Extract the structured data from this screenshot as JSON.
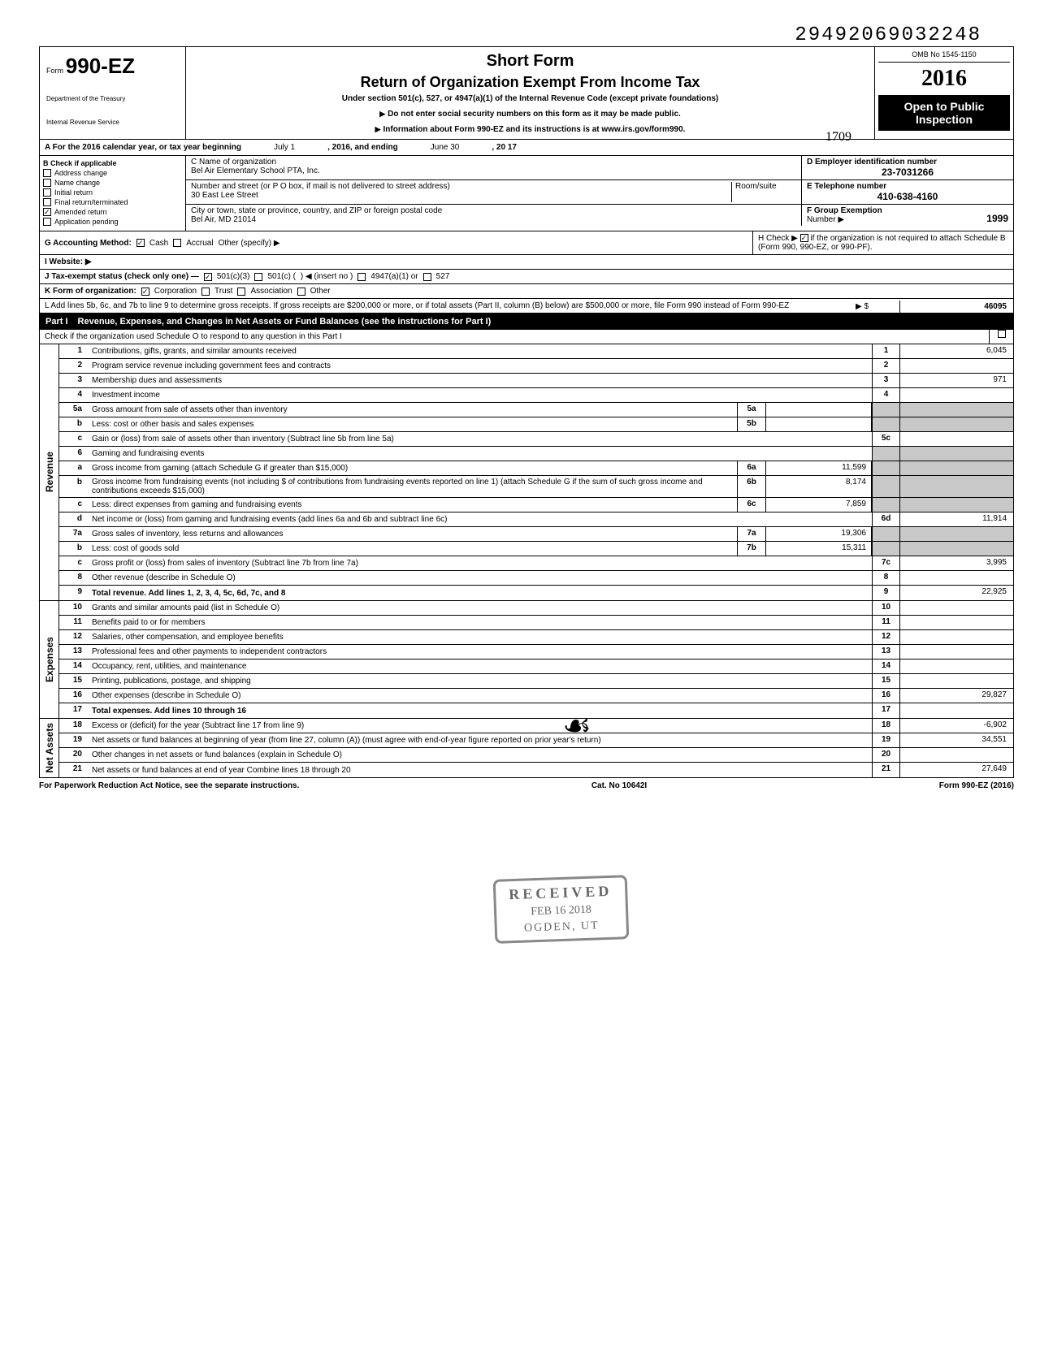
{
  "top_number": "29492069032248",
  "form": {
    "label": "Form",
    "number": "990-EZ",
    "dept1": "Department of the Treasury",
    "dept2": "Internal Revenue Service"
  },
  "header": {
    "short_form": "Short Form",
    "title": "Return of Organization Exempt From Income Tax",
    "under": "Under section 501(c), 527, or 4947(a)(1) of the Internal Revenue Code (except private foundations)",
    "warn": "Do not enter social security numbers on this form as it may be made public.",
    "info": "Information about Form 990-EZ and its instructions is at www.irs.gov/form990.",
    "omb": "OMB No 1545-1150",
    "year": "2016",
    "open": "Open to Public Inspection",
    "hand_note": "1709"
  },
  "a_line": {
    "prefix": "A For the 2016 calendar year, or tax year beginning",
    "begin": "July 1",
    "mid": ", 2016, and ending",
    "end": "June 30",
    "suffix": ", 20  17"
  },
  "section_b": {
    "label": "B Check if applicable",
    "checks": [
      {
        "label": "Address change",
        "checked": false
      },
      {
        "label": "Name change",
        "checked": false
      },
      {
        "label": "Initial return",
        "checked": false
      },
      {
        "label": "Final return/terminated",
        "checked": false
      },
      {
        "label": "Amended return",
        "checked": true
      },
      {
        "label": "Application pending",
        "checked": false
      }
    ]
  },
  "section_c": {
    "name_label": "C Name of organization",
    "name": "Bel Air Elementary School PTA, Inc.",
    "street_label": "Number and street (or P O  box, if mail is not delivered to street address)",
    "room_label": "Room/suite",
    "street": "30 East Lee Street",
    "city_label": "City or town, state or province, country, and ZIP or foreign postal code",
    "city": "Bel Air, MD 21014"
  },
  "section_d": {
    "label": "D Employer identification number",
    "value": "23-7031266"
  },
  "section_e": {
    "label": "E Telephone number",
    "value": "410-638-4160"
  },
  "section_f": {
    "label": "F Group Exemption",
    "label2": "Number ▶",
    "value": "1999"
  },
  "line_g": {
    "prefix": "G Accounting Method:",
    "cash": "Cash",
    "accrual": "Accrual",
    "other": "Other (specify) ▶"
  },
  "line_h": {
    "text": "H Check ▶",
    "rest": "if the organization is not required to attach Schedule B (Form 990, 990-EZ, or 990-PF)."
  },
  "line_i": {
    "label": "I  Website: ▶"
  },
  "line_j": {
    "prefix": "J Tax-exempt status (check only one) —",
    "c3": "501(c)(3)",
    "c": "501(c) (",
    "insert": ") ◀ (insert no )",
    "a1": "4947(a)(1) or",
    "s527": "527"
  },
  "line_k": {
    "prefix": "K Form of organization:",
    "corp": "Corporation",
    "trust": "Trust",
    "assoc": "Association",
    "other": "Other"
  },
  "line_l": {
    "text": "L Add lines 5b, 6c, and 7b to line 9 to determine gross receipts. If gross receipts are $200,000 or more, or if total assets (Part II, column (B) below) are $500,000 or more, file Form 990 instead of Form 990-EZ",
    "arrow_label": "▶  $",
    "value": "46095"
  },
  "part1": {
    "label": "Part I",
    "title": "Revenue, Expenses, and Changes in Net Assets or Fund Balances (see the instructions for Part I)",
    "check_line": "Check if the organization used Schedule O to respond to any question in this Part I"
  },
  "side_labels": {
    "revenue": "Revenue",
    "expenses": "Expenses",
    "netassets": "Net Assets"
  },
  "lines": {
    "l1": {
      "n": "1",
      "d": "Contributions, gifts, grants, and similar amounts received",
      "rn": "1",
      "v": "6,045"
    },
    "l2": {
      "n": "2",
      "d": "Program service revenue including government fees and contracts",
      "rn": "2",
      "v": ""
    },
    "l3": {
      "n": "3",
      "d": "Membership dues and assessments",
      "rn": "3",
      "v": "971"
    },
    "l4": {
      "n": "4",
      "d": "Investment income",
      "rn": "4",
      "v": ""
    },
    "l5a": {
      "n": "5a",
      "d": "Gross amount from sale of assets other than inventory",
      "sn": "5a",
      "sv": ""
    },
    "l5b": {
      "n": "b",
      "d": "Less: cost or other basis and sales expenses",
      "sn": "5b",
      "sv": ""
    },
    "l5c": {
      "n": "c",
      "d": "Gain or (loss) from sale of assets other than inventory (Subtract line 5b from line 5a)",
      "rn": "5c",
      "v": ""
    },
    "l6": {
      "n": "6",
      "d": "Gaming and fundraising events"
    },
    "l6a": {
      "n": "a",
      "d": "Gross income from gaming (attach Schedule G if greater than $15,000)",
      "sn": "6a",
      "sv": "11,599"
    },
    "l6b": {
      "n": "b",
      "d": "Gross income from fundraising events (not including  $                       of contributions from fundraising events reported on line 1) (attach Schedule G if the sum of such gross income and contributions exceeds $15,000)",
      "sn": "6b",
      "sv": "8,174"
    },
    "l6c": {
      "n": "c",
      "d": "Less: direct expenses from gaming and fundraising events",
      "sn": "6c",
      "sv": "7,859"
    },
    "l6d": {
      "n": "d",
      "d": "Net income or (loss) from gaming and fundraising events (add lines 6a and 6b and subtract line 6c)",
      "rn": "6d",
      "v": "11,914"
    },
    "l7a": {
      "n": "7a",
      "d": "Gross sales of inventory, less returns and allowances",
      "sn": "7a",
      "sv": "19,306"
    },
    "l7b": {
      "n": "b",
      "d": "Less: cost of goods sold",
      "sn": "7b",
      "sv": "15,311"
    },
    "l7c": {
      "n": "c",
      "d": "Gross profit or (loss) from sales of inventory (Subtract line 7b from line 7a)",
      "rn": "7c",
      "v": "3,995"
    },
    "l8": {
      "n": "8",
      "d": "Other revenue (describe in Schedule O)",
      "rn": "8",
      "v": ""
    },
    "l9": {
      "n": "9",
      "d": "Total revenue. Add lines 1, 2, 3, 4, 5c, 6d, 7c, and 8",
      "rn": "9",
      "v": "22,925",
      "bold": true
    },
    "l10": {
      "n": "10",
      "d": "Grants and similar amounts paid (list in Schedule O)",
      "rn": "10",
      "v": ""
    },
    "l11": {
      "n": "11",
      "d": "Benefits paid to or for members",
      "rn": "11",
      "v": ""
    },
    "l12": {
      "n": "12",
      "d": "Salaries, other compensation, and employee benefits",
      "rn": "12",
      "v": ""
    },
    "l13": {
      "n": "13",
      "d": "Professional fees and other payments to independent contractors",
      "rn": "13",
      "v": ""
    },
    "l14": {
      "n": "14",
      "d": "Occupancy, rent, utilities, and maintenance",
      "rn": "14",
      "v": ""
    },
    "l15": {
      "n": "15",
      "d": "Printing, publications, postage, and shipping",
      "rn": "15",
      "v": ""
    },
    "l16": {
      "n": "16",
      "d": "Other expenses (describe in Schedule O)",
      "rn": "16",
      "v": "29,827"
    },
    "l17": {
      "n": "17",
      "d": "Total expenses. Add lines 10 through 16",
      "rn": "17",
      "v": "",
      "bold": true
    },
    "l18": {
      "n": "18",
      "d": "Excess or (deficit) for the year (Subtract line 17 from line 9)",
      "rn": "18",
      "v": "-6,902"
    },
    "l19": {
      "n": "19",
      "d": "Net assets or fund balances at beginning of year (from line 27, column (A)) (must agree with end-of-year figure reported on prior year's return)",
      "rn": "19",
      "v": "34,551"
    },
    "l20": {
      "n": "20",
      "d": "Other changes in net assets or fund balances (explain in Schedule O)",
      "rn": "20",
      "v": ""
    },
    "l21": {
      "n": "21",
      "d": "Net assets or fund balances at end of year  Combine lines 18 through 20",
      "rn": "21",
      "v": "27,649"
    }
  },
  "stamp": {
    "r1": "RECEIVED",
    "r2": "FEB 16 2018",
    "r3": "OGDEN, UT"
  },
  "footer": {
    "left": "For Paperwork Reduction Act Notice, see the separate instructions.",
    "mid": "Cat. No 10642I",
    "right": "Form 990-EZ (2016)"
  }
}
